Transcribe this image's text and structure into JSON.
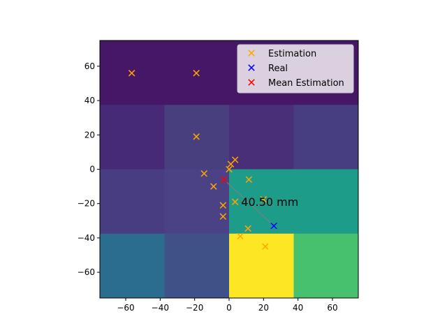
{
  "chart_data": {
    "type": "scatter",
    "title": "",
    "xlabel": "",
    "ylabel": "",
    "xlim": [
      -75,
      75
    ],
    "ylim": [
      -75,
      75
    ],
    "xticks": [
      -60,
      -40,
      -20,
      0,
      20,
      40,
      60
    ],
    "yticks": [
      -60,
      -40,
      -20,
      0,
      20,
      40,
      60
    ],
    "grid": false,
    "legend_position": "top-right",
    "heatmap": {
      "x_edges": [
        -75,
        -37.5,
        0,
        37.5,
        75
      ],
      "y_edges": [
        -75,
        -37.5,
        0,
        37.5,
        75
      ],
      "colors_top_to_bottom": [
        [
          "#461766",
          "#461766",
          "#461766",
          "#461766"
        ],
        [
          "#462a77",
          "#483f7f",
          "#492e78",
          "#463e7f"
        ],
        [
          "#483d80",
          "#4a4285",
          "#1e9c8a",
          "#1e9c8a"
        ],
        [
          "#2a6d8e",
          "#3e5288",
          "#fde725",
          "#47c16e"
        ]
      ]
    },
    "series": [
      {
        "name": "Estimation",
        "marker": "x",
        "color": "#ffa500",
        "points": [
          [
            -56.5,
            56
          ],
          [
            -19,
            56
          ],
          [
            -19,
            19
          ],
          [
            3.5,
            5.5
          ],
          [
            1,
            3
          ],
          [
            0,
            0
          ],
          [
            -14.5,
            -2.5
          ],
          [
            -9,
            -10
          ],
          [
            11.5,
            -6
          ],
          [
            -3.5,
            -21
          ],
          [
            3.5,
            -19
          ],
          [
            20,
            -17.5
          ],
          [
            -3.5,
            -27.5
          ],
          [
            11,
            -34.5
          ],
          [
            6.5,
            -39
          ],
          [
            21,
            -45
          ]
        ]
      },
      {
        "name": "Real",
        "marker": "x",
        "color": "#0000ff",
        "points": [
          [
            26,
            -33
          ]
        ]
      },
      {
        "name": "Mean Estimation",
        "marker": "x",
        "color": "#ff0000",
        "points": [
          [
            -3,
            -6
          ]
        ]
      }
    ],
    "connector": {
      "from": [
        -3,
        -6
      ],
      "to": [
        26,
        -33
      ],
      "color": "#808080"
    },
    "annotation": {
      "text": "40.50 mm",
      "at": [
        7,
        -19
      ]
    }
  }
}
